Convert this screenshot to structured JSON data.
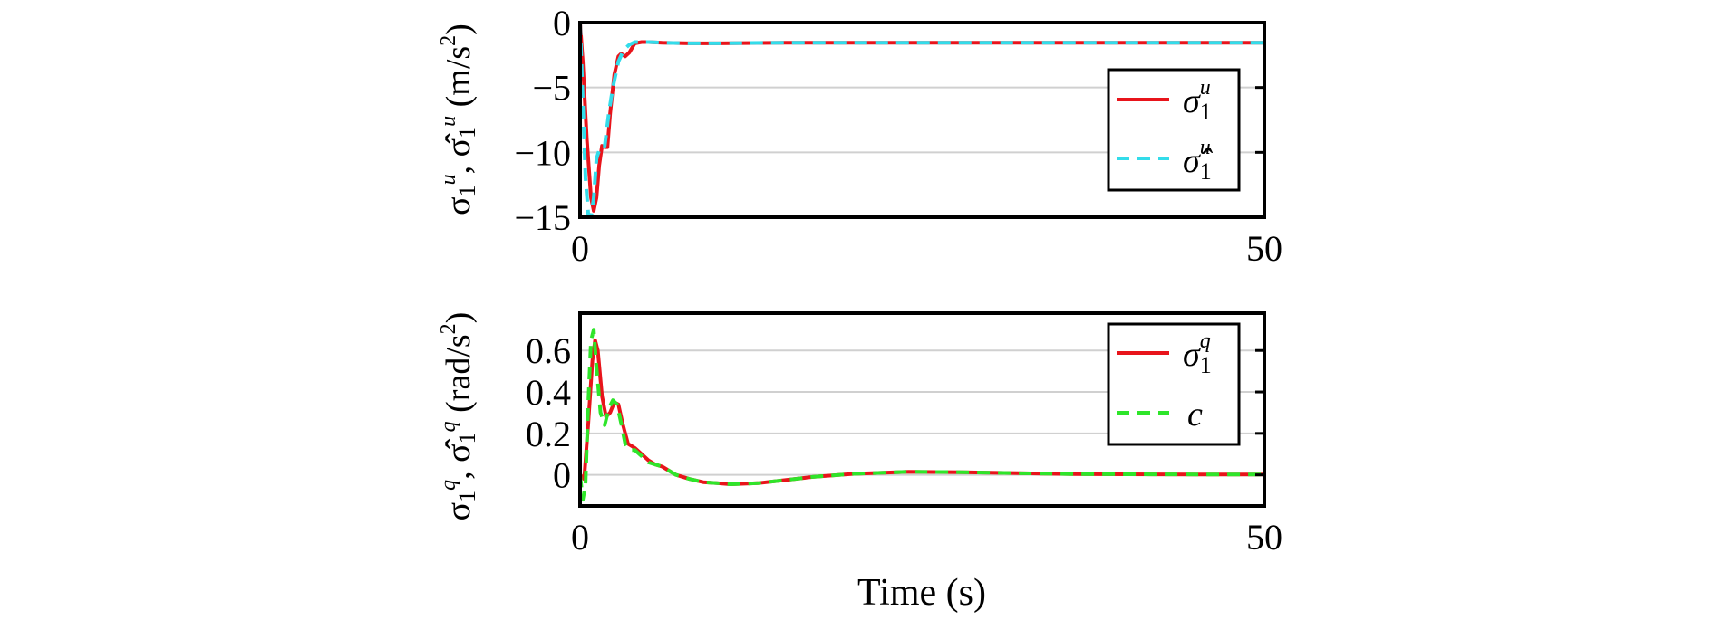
{
  "chart_data": [
    {
      "type": "line",
      "ylabel": "σ1u, σ̂1u (m/s²)",
      "ylabel_parts": {
        "sym1": "σ",
        "sub1": "1",
        "sup1": "u",
        "sep": ", ",
        "sym2": "σ̂",
        "sub2": "1",
        "sup2": "u",
        "unit": " (m/s",
        "unit_exp": "2",
        "unit_end": ")"
      },
      "xlim": [
        0,
        50
      ],
      "ylim": [
        -15,
        0
      ],
      "xticks": [
        0,
        50
      ],
      "xtick_labels": [
        "0",
        "50"
      ],
      "yticks": [
        0,
        -5,
        -10,
        -15
      ],
      "ytick_labels": [
        "0",
        "−5",
        "−10",
        "−15"
      ],
      "grid": "horizontal",
      "legend_position": "top-right",
      "series": [
        {
          "name": "σ1u",
          "legend_parts": {
            "sym": "σ",
            "sub": "1",
            "sup": "u"
          },
          "color": "#e8141b",
          "style": "solid",
          "x": [
            0,
            0.2,
            0.5,
            0.8,
            1.0,
            1.2,
            1.4,
            1.6,
            1.8,
            2.0,
            2.2,
            2.5,
            2.8,
            3.0,
            3.3,
            3.6,
            4.0,
            4.5,
            5.0,
            6.0,
            8.0,
            10.0,
            15.0,
            20.0,
            30.0,
            40.0,
            50.0
          ],
          "y": [
            0,
            -3,
            -9,
            -13.5,
            -14.5,
            -13.5,
            -11,
            -9.5,
            -9.6,
            -9.6,
            -7,
            -4,
            -2.6,
            -2.4,
            -2.6,
            -2.3,
            -1.6,
            -1.5,
            -1.5,
            -1.55,
            -1.6,
            -1.6,
            -1.55,
            -1.55,
            -1.55,
            -1.55,
            -1.55
          ]
        },
        {
          "name": "σ̂1u",
          "legend_parts": {
            "sym": "σ̂",
            "sub": "1",
            "sup": "u"
          },
          "color": "#33dcea",
          "style": "dashed",
          "x": [
            0,
            0.2,
            0.4,
            0.6,
            0.8,
            1.0,
            1.2,
            1.5,
            1.8,
            2.1,
            2.4,
            2.8,
            3.2,
            3.6,
            4.0,
            4.5,
            5.0,
            6.0,
            8.0,
            10.0,
            15.0,
            20.0,
            30.0,
            40.0,
            50.0
          ],
          "y": [
            0,
            -6,
            -12,
            -14.8,
            -15,
            -13.5,
            -10.5,
            -9.5,
            -9.5,
            -7,
            -5,
            -3,
            -2.1,
            -1.7,
            -1.5,
            -1.5,
            -1.5,
            -1.55,
            -1.6,
            -1.6,
            -1.55,
            -1.55,
            -1.55,
            -1.55,
            -1.55
          ]
        }
      ]
    },
    {
      "type": "line",
      "ylabel": "σ1q, σ̂1q (rad/s²)",
      "ylabel_parts": {
        "sym1": "σ",
        "sub1": "1",
        "sup1": "q",
        "sep": ", ",
        "sym2": "σ̂",
        "sub2": "1",
        "sup2": "q",
        "unit": " (rad/s",
        "unit_exp": "2",
        "unit_end": ")"
      },
      "xlabel": "Time (s)",
      "xlim": [
        0,
        50
      ],
      "ylim": [
        -0.15,
        0.78
      ],
      "xticks": [
        0,
        50
      ],
      "xtick_labels": [
        "0",
        "50"
      ],
      "yticks": [
        0.6,
        0.4,
        0.2,
        0
      ],
      "ytick_labels": [
        "0.6",
        "0.4",
        "0.2",
        "0"
      ],
      "grid": "horizontal",
      "legend_position": "top-right",
      "series": [
        {
          "name": "σ1q",
          "legend_parts": {
            "sym": "σ",
            "sub": "1",
            "sup": "q"
          },
          "color": "#e8141b",
          "style": "solid",
          "x": [
            0,
            0.3,
            0.6,
            0.9,
            1.1,
            1.3,
            1.6,
            1.9,
            2.2,
            2.5,
            2.8,
            3.1,
            3.5,
            4.0,
            4.5,
            5.0,
            5.5,
            6.0,
            7.0,
            8.0,
            9.0,
            10.0,
            11.0,
            13.0,
            15.0,
            17.0,
            20.0,
            24.0,
            28.0,
            32.0,
            36.0,
            40.0,
            45.0,
            50.0
          ],
          "y": [
            0,
            -0.02,
            0.25,
            0.55,
            0.65,
            0.6,
            0.38,
            0.28,
            0.3,
            0.35,
            0.34,
            0.25,
            0.15,
            0.13,
            0.1,
            0.07,
            0.05,
            0.04,
            0.0,
            -0.02,
            -0.035,
            -0.04,
            -0.045,
            -0.04,
            -0.025,
            -0.01,
            0.005,
            0.015,
            0.013,
            0.008,
            0.004,
            0.003,
            0.002,
            0.002
          ]
        },
        {
          "name": "c",
          "legend_parts": {
            "sym": "c",
            "sub": "",
            "sup": ""
          },
          "color": "#2ee52a",
          "style": "dashed",
          "x": [
            0,
            0.2,
            0.4,
            0.6,
            0.8,
            1.0,
            1.2,
            1.5,
            1.8,
            2.1,
            2.4,
            2.7,
            3.0,
            3.3,
            3.6,
            4.0,
            4.5,
            5.0,
            5.5,
            6.0,
            7.0,
            8.0,
            9.0,
            10.0,
            11.0,
            13.0,
            15.0,
            17.0,
            20.0,
            24.0,
            28.0,
            32.0,
            36.0,
            40.0,
            45.0,
            50.0
          ],
          "y": [
            0,
            -0.12,
            -0.05,
            0.35,
            0.65,
            0.7,
            0.52,
            0.3,
            0.24,
            0.32,
            0.36,
            0.34,
            0.25,
            0.15,
            0.12,
            0.12,
            0.09,
            0.06,
            0.05,
            0.04,
            0.0,
            -0.02,
            -0.035,
            -0.04,
            -0.045,
            -0.04,
            -0.025,
            -0.01,
            0.005,
            0.015,
            0.013,
            0.008,
            0.004,
            0.003,
            0.002,
            0.002
          ]
        }
      ]
    }
  ]
}
